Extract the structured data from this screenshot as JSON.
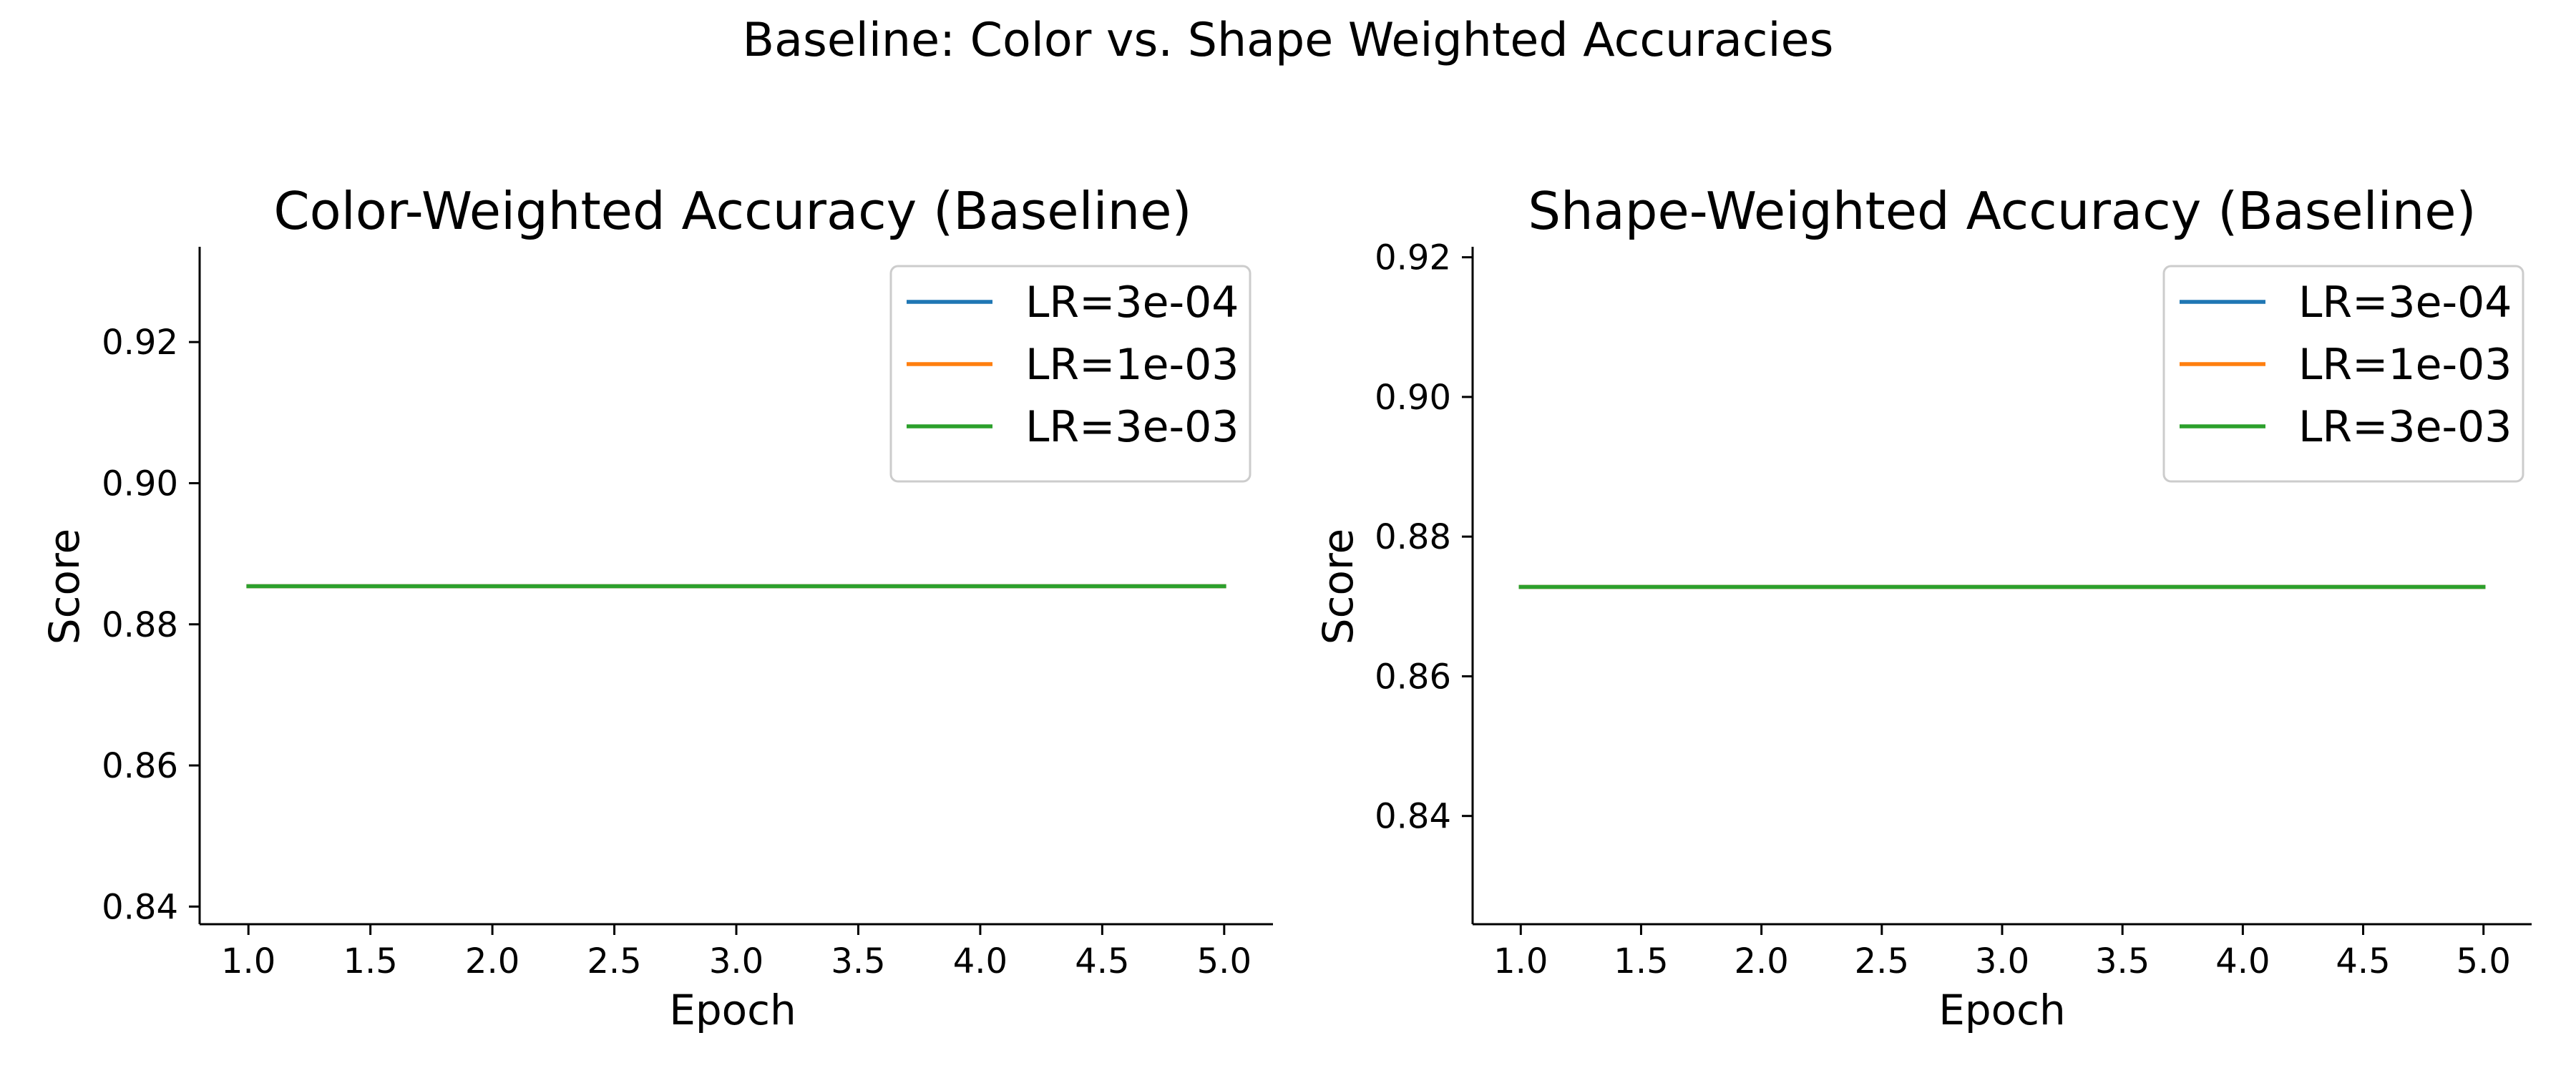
{
  "figure": {
    "suptitle": "Baseline: Color vs. Shape Weighted Accuracies"
  },
  "chart_data": [
    {
      "type": "line",
      "title": "Color-Weighted Accuracy (Baseline)",
      "xlabel": "Epoch",
      "ylabel": "Score",
      "xlim": [
        0.8,
        5.2
      ],
      "ylim": [
        0.8375,
        0.9335
      ],
      "xticks": [
        1.0,
        1.5,
        2.0,
        2.5,
        3.0,
        3.5,
        4.0,
        4.5,
        5.0
      ],
      "xtick_labels": [
        "1.0",
        "1.5",
        "2.0",
        "2.5",
        "3.0",
        "3.5",
        "4.0",
        "4.5",
        "5.0"
      ],
      "yticks": [
        0.84,
        0.86,
        0.88,
        0.9,
        0.92
      ],
      "ytick_labels": [
        "0.84",
        "0.86",
        "0.88",
        "0.90",
        "0.92"
      ],
      "grid": false,
      "legend": "top-right",
      "x": [
        1,
        2,
        3,
        4,
        5
      ],
      "series": [
        {
          "name": "LR=3e-04",
          "color": "#1f77b4",
          "values": [
            0.8854,
            0.8854,
            0.8854,
            0.8854,
            0.8854
          ]
        },
        {
          "name": "LR=1e-03",
          "color": "#ff7f0e",
          "values": [
            0.8854,
            0.8854,
            0.8854,
            0.8854,
            0.8854
          ]
        },
        {
          "name": "LR=3e-03",
          "color": "#2ca02c",
          "values": [
            0.8854,
            0.8854,
            0.8854,
            0.8854,
            0.8854
          ]
        }
      ]
    },
    {
      "type": "line",
      "title": "Shape-Weighted Accuracy (Baseline)",
      "xlabel": "Epoch",
      "ylabel": "Score",
      "xlim": [
        0.8,
        5.2
      ],
      "ylim": [
        0.8245,
        0.9215
      ],
      "xticks": [
        1.0,
        1.5,
        2.0,
        2.5,
        3.0,
        3.5,
        4.0,
        4.5,
        5.0
      ],
      "xtick_labels": [
        "1.0",
        "1.5",
        "2.0",
        "2.5",
        "3.0",
        "3.5",
        "4.0",
        "4.5",
        "5.0"
      ],
      "yticks": [
        0.84,
        0.86,
        0.88,
        0.9,
        0.92
      ],
      "ytick_labels": [
        "0.84",
        "0.86",
        "0.88",
        "0.90",
        "0.92"
      ],
      "grid": false,
      "legend": "top-right",
      "x": [
        1,
        2,
        3,
        4,
        5
      ],
      "series": [
        {
          "name": "LR=3e-04",
          "color": "#1f77b4",
          "values": [
            0.8728,
            0.8728,
            0.8728,
            0.8728,
            0.8728
          ]
        },
        {
          "name": "LR=1e-03",
          "color": "#ff7f0e",
          "values": [
            0.8728,
            0.8728,
            0.8728,
            0.8728,
            0.8728
          ]
        },
        {
          "name": "LR=3e-03",
          "color": "#2ca02c",
          "values": [
            0.8728,
            0.8728,
            0.8728,
            0.8728,
            0.8728
          ]
        }
      ]
    }
  ]
}
